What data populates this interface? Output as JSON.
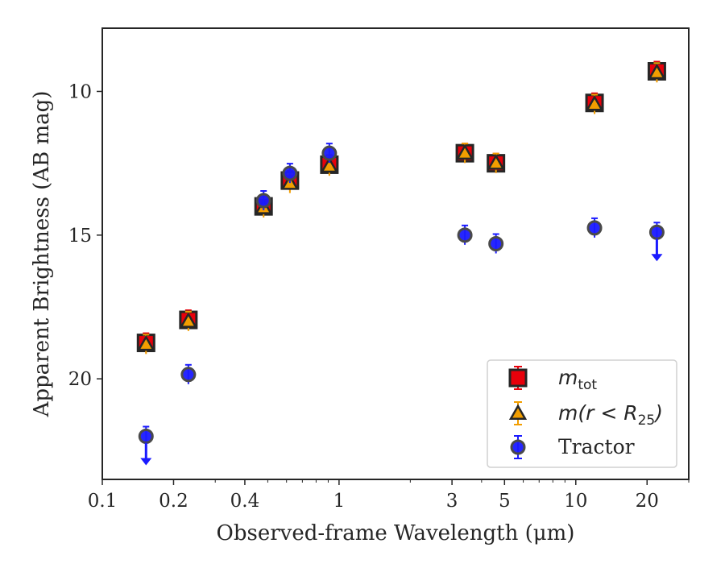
{
  "chart_data": {
    "type": "scatter",
    "xlabel": "Observed-frame Wavelength (μm)",
    "ylabel": "Apparent Brightness (AB mag)",
    "x_scale": "log",
    "xlim": [
      0.1,
      30
    ],
    "ylim": [
      23.5,
      7.8
    ],
    "y_inverted": true,
    "x_ticks": [
      0.1,
      0.2,
      0.4,
      1,
      3,
      5,
      10,
      20
    ],
    "x_tick_labels": [
      "0.1",
      "0.2",
      "0.4",
      "1",
      "3",
      "5",
      "10",
      "20"
    ],
    "y_ticks": [
      10,
      15,
      20
    ],
    "y_tick_labels": [
      "10",
      "15",
      "20"
    ],
    "grid": false,
    "legend_position": "lower-right",
    "series": [
      {
        "name": "m_tot",
        "legend_main": "m",
        "legend_sub": "tot",
        "marker": "square",
        "color": "#e8000b",
        "points": [
          {
            "x": 0.153,
            "y": 18.75
          },
          {
            "x": 0.231,
            "y": 17.95
          },
          {
            "x": 0.48,
            "y": 14.0
          },
          {
            "x": 0.62,
            "y": 13.1
          },
          {
            "x": 0.91,
            "y": 12.55
          },
          {
            "x": 3.4,
            "y": 12.15
          },
          {
            "x": 4.6,
            "y": 12.5
          },
          {
            "x": 12.0,
            "y": 10.4
          },
          {
            "x": 22.0,
            "y": 9.3
          }
        ]
      },
      {
        "name": "m(r < R25)",
        "legend_main": "m(r < R",
        "legend_sub": "25",
        "legend_tail": ")",
        "marker": "triangle",
        "color": "#f29e00",
        "points": [
          {
            "x": 0.153,
            "y": 18.8
          },
          {
            "x": 0.231,
            "y": 18.0
          },
          {
            "x": 0.48,
            "y": 14.05
          },
          {
            "x": 0.62,
            "y": 13.2
          },
          {
            "x": 0.91,
            "y": 12.6
          },
          {
            "x": 3.4,
            "y": 12.15
          },
          {
            "x": 4.6,
            "y": 12.5
          },
          {
            "x": 12.0,
            "y": 10.45
          },
          {
            "x": 22.0,
            "y": 9.35
          }
        ]
      },
      {
        "name": "Tractor",
        "legend_main": "Tractor",
        "marker": "circle",
        "color": "#1a1aff",
        "points": [
          {
            "x": 0.153,
            "y": 22.0,
            "upper_limit": true
          },
          {
            "x": 0.231,
            "y": 19.85
          },
          {
            "x": 0.48,
            "y": 13.8
          },
          {
            "x": 0.62,
            "y": 12.85
          },
          {
            "x": 0.91,
            "y": 12.15
          },
          {
            "x": 3.4,
            "y": 15.0
          },
          {
            "x": 4.6,
            "y": 15.3
          },
          {
            "x": 12.0,
            "y": 14.75
          },
          {
            "x": 22.0,
            "y": 14.9,
            "upper_limit": true
          }
        ]
      }
    ]
  },
  "colors": {
    "axis": "#262626",
    "marker_edge": "#262626",
    "tractor_edge": "#4a4a4a",
    "legend_border": "#d0d0d0"
  }
}
